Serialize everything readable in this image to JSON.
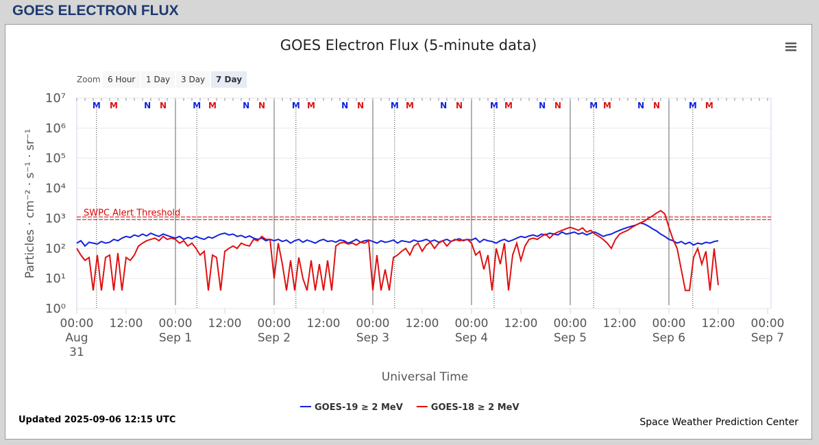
{
  "header": {
    "title": "GOES ELECTRON FLUX"
  },
  "zoom": {
    "label": "Zoom",
    "buttons": [
      "6 Hour",
      "1 Day",
      "3 Day",
      "7 Day"
    ],
    "active": 3
  },
  "chart_data": {
    "type": "line",
    "title": "GOES Electron Flux (5-minute data)",
    "x_label": "Universal Time",
    "y_label": "Particles · cm⁻² · s⁻¹ · sr⁻¹",
    "log_y": true,
    "grid": true,
    "xlim": [
      0,
      168
    ],
    "xticks": [
      {
        "value": 0,
        "label": "00:00\nAug\n31"
      },
      {
        "value": 12,
        "label": "12:00"
      },
      {
        "value": 24,
        "label": "00:00\nSep 1"
      },
      {
        "value": 36,
        "label": "12:00"
      },
      {
        "value": 48,
        "label": "00:00\nSep 2"
      },
      {
        "value": 60,
        "label": "12:00"
      },
      {
        "value": 72,
        "label": "00:00\nSep 3"
      },
      {
        "value": 84,
        "label": "12:00"
      },
      {
        "value": 96,
        "label": "00:00\nSep 4"
      },
      {
        "value": 108,
        "label": "12:00"
      },
      {
        "value": 120,
        "label": "00:00\nSep 5"
      },
      {
        "value": 132,
        "label": "12:00"
      },
      {
        "value": 144,
        "label": "00:00\nSep 6"
      },
      {
        "value": 156,
        "label": "12:00"
      },
      {
        "value": 168,
        "label": "00:00\nSep 7"
      }
    ],
    "ylim": [
      1,
      10000000
    ],
    "yticks": [
      {
        "value": 1,
        "label": "10⁰"
      },
      {
        "value": 10,
        "label": "10¹"
      },
      {
        "value": 100,
        "label": "10²"
      },
      {
        "value": 1000,
        "label": "10³"
      },
      {
        "value": 10000,
        "label": "10⁴"
      },
      {
        "value": 100000,
        "label": "10⁵"
      },
      {
        "value": 1000000,
        "label": "10⁶"
      },
      {
        "value": 10000000,
        "label": "10⁷"
      }
    ],
    "threshold": {
      "value": 1000,
      "label": "SWPC Alert Threshold",
      "color": "#e00000"
    },
    "local_time_markers": [
      {
        "label": "M",
        "color": "#1020e0",
        "dotted": true,
        "x": [
          4.8,
          29.2,
          53.3,
          77.3,
          101.5,
          125.7,
          149.8
        ]
      },
      {
        "label": "M",
        "color": "#e01010",
        "x": [
          9,
          33,
          57,
          81,
          105,
          129,
          153.8
        ]
      },
      {
        "label": "N",
        "color": "#1020e0",
        "x": [
          17.2,
          41.2,
          65.2,
          89.2,
          113.2,
          137.2
        ]
      },
      {
        "label": "N",
        "color": "#e01010",
        "x": [
          21,
          45,
          69,
          93,
          117,
          141
        ]
      }
    ],
    "x": [
      0,
      1,
      2,
      3,
      4,
      5,
      6,
      7,
      8,
      9,
      10,
      11,
      12,
      13,
      14,
      15,
      16,
      17,
      18,
      19,
      20,
      21,
      22,
      23,
      24,
      25,
      26,
      27,
      28,
      29,
      30,
      31,
      32,
      33,
      34,
      35,
      36,
      37,
      38,
      39,
      40,
      41,
      42,
      43,
      44,
      45,
      46,
      47,
      48,
      49,
      50,
      51,
      52,
      53,
      54,
      55,
      56,
      57,
      58,
      59,
      60,
      61,
      62,
      63,
      64,
      65,
      66,
      67,
      68,
      69,
      70,
      71,
      72,
      73,
      74,
      75,
      76,
      77,
      78,
      79,
      80,
      81,
      82,
      83,
      84,
      85,
      86,
      87,
      88,
      89,
      90,
      91,
      92,
      93,
      94,
      95,
      96,
      97,
      98,
      99,
      100,
      101,
      102,
      103,
      104,
      105,
      106,
      107,
      108,
      109,
      110,
      111,
      112,
      113,
      114,
      115,
      116,
      117,
      118,
      119,
      120,
      121,
      122,
      123,
      124,
      125,
      126,
      127,
      128,
      129,
      130,
      131,
      132,
      133,
      134,
      135,
      136,
      137,
      138,
      139,
      140,
      141,
      142,
      143,
      144,
      145,
      146,
      147,
      148,
      149,
      150,
      151,
      152,
      153,
      154,
      155,
      156
    ],
    "series": [
      {
        "name": "GOES-19 ≥ 2 MeV",
        "color": "#1020e0",
        "values": [
          150,
          180,
          120,
          160,
          150,
          140,
          170,
          150,
          160,
          200,
          180,
          220,
          250,
          230,
          280,
          250,
          300,
          260,
          320,
          280,
          250,
          300,
          270,
          240,
          220,
          250,
          200,
          230,
          210,
          250,
          220,
          200,
          240,
          220,
          260,
          300,
          320,
          280,
          300,
          250,
          270,
          230,
          260,
          220,
          200,
          220,
          180,
          200,
          180,
          200,
          170,
          190,
          150,
          180,
          200,
          160,
          190,
          170,
          150,
          180,
          200,
          170,
          180,
          160,
          190,
          180,
          150,
          170,
          200,
          160,
          180,
          190,
          170,
          150,
          180,
          160,
          170,
          190,
          150,
          180,
          170,
          160,
          190,
          170,
          180,
          200,
          170,
          190,
          160,
          180,
          200,
          170,
          190,
          210,
          180,
          200,
          190,
          220,
          160,
          200,
          180,
          170,
          150,
          180,
          200,
          170,
          190,
          220,
          250,
          230,
          260,
          280,
          250,
          300,
          280,
          320,
          300,
          280,
          350,
          300,
          320,
          350,
          300,
          330,
          280,
          320,
          350,
          300,
          250,
          280,
          300,
          350,
          400,
          450,
          500,
          550,
          600,
          700,
          650,
          550,
          450,
          380,
          300,
          250,
          200,
          180,
          150,
          170,
          140,
          160,
          130,
          150,
          140,
          160,
          150,
          170,
          180
        ]
      },
      {
        "name": "GOES-18 ≥ 2 MeV",
        "color": "#e01010",
        "values": [
          100,
          60,
          40,
          50,
          4,
          60,
          4,
          50,
          60,
          4,
          70,
          4,
          50,
          40,
          60,
          120,
          150,
          180,
          200,
          220,
          180,
          250,
          200,
          220,
          200,
          150,
          180,
          120,
          150,
          100,
          60,
          80,
          4,
          60,
          50,
          4,
          80,
          100,
          120,
          100,
          150,
          130,
          120,
          200,
          180,
          250,
          200,
          200,
          10,
          150,
          30,
          4,
          40,
          4,
          50,
          10,
          4,
          40,
          4,
          30,
          4,
          40,
          4,
          120,
          150,
          160,
          140,
          150,
          130,
          160,
          150,
          180,
          4,
          60,
          4,
          20,
          4,
          50,
          60,
          80,
          100,
          60,
          120,
          150,
          80,
          130,
          160,
          100,
          150,
          180,
          120,
          170,
          200,
          180,
          190,
          200,
          150,
          60,
          80,
          20,
          60,
          4,
          100,
          30,
          150,
          4,
          60,
          150,
          40,
          120,
          200,
          220,
          200,
          250,
          300,
          220,
          300,
          350,
          400,
          450,
          500,
          450,
          400,
          480,
          350,
          400,
          300,
          250,
          200,
          150,
          100,
          200,
          300,
          350,
          400,
          500,
          600,
          700,
          800,
          1000,
          1200,
          1500,
          1800,
          1400,
          500,
          200,
          100,
          20,
          4,
          4,
          50,
          100,
          30,
          80,
          4,
          100,
          6
        ]
      }
    ]
  },
  "footer": {
    "updated": "Updated 2025-09-06 12:15 UTC",
    "credit": "Space Weather Prediction Center"
  }
}
